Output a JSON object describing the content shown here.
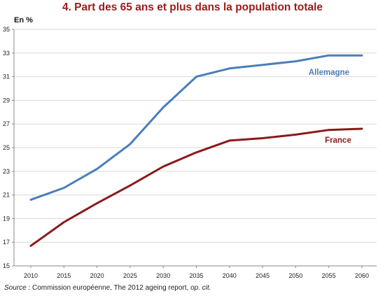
{
  "chart_data": {
    "type": "line",
    "title": "4. Part des 65 ans et plus dans la population totale",
    "ylabel": "En %",
    "xlabel": "",
    "x": [
      2010,
      2015,
      2020,
      2025,
      2030,
      2035,
      2040,
      2045,
      2050,
      2055,
      2060
    ],
    "x_tick_labels": [
      "2010",
      "2015",
      "2020",
      "2025",
      "2030",
      "2035",
      "2040",
      "2045",
      "2050",
      "2055",
      "2060"
    ],
    "ylim": [
      15,
      35
    ],
    "y_ticks": [
      15,
      17,
      19,
      21,
      23,
      25,
      27,
      29,
      31,
      33,
      35
    ],
    "y_tick_labels": [
      "15",
      "17",
      "19",
      "21",
      "23",
      "25",
      "27",
      "29",
      "31",
      "33",
      "35"
    ],
    "grid": true,
    "series": [
      {
        "name": "Allemagne",
        "color": "#4a7ebb",
        "values": [
          20.6,
          21.6,
          23.2,
          25.3,
          28.4,
          31.0,
          31.7,
          32.0,
          32.3,
          32.8,
          32.8
        ]
      },
      {
        "name": "France",
        "color": "#8b1a1a",
        "values": [
          16.7,
          18.7,
          20.3,
          21.8,
          23.4,
          24.6,
          25.6,
          25.8,
          26.1,
          26.5,
          26.6
        ]
      }
    ]
  },
  "source": {
    "label": "Source :",
    "text": " Commission européenne, The 2012 ageing report, ",
    "ref": "op. cit."
  }
}
